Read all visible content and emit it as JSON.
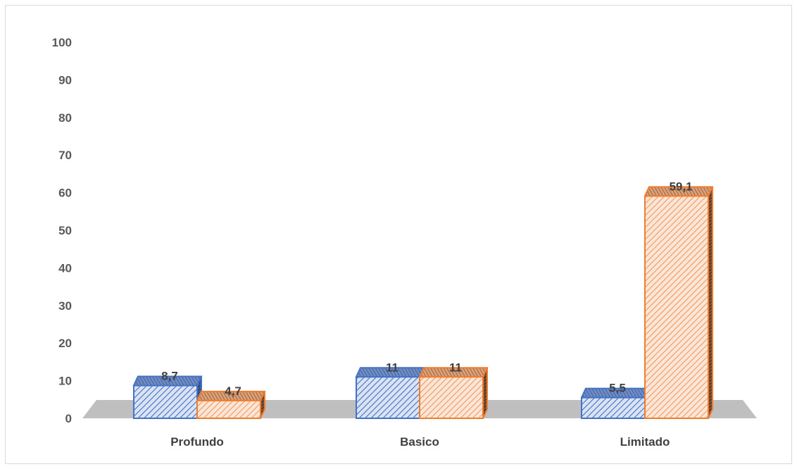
{
  "chart_data": {
    "type": "bar",
    "style": "3d-clustered-column",
    "categories": [
      "Profundo",
      "Basico",
      "Limitado"
    ],
    "series": [
      {
        "values": [
          8.7,
          11,
          5.5
        ],
        "color": "#4472c4",
        "fill": "#dae3f3",
        "pattern": "diagonal-hatch"
      },
      {
        "values": [
          4.7,
          11,
          59.1
        ],
        "color": "#ed7d31",
        "fill": "#fbe5d6",
        "pattern": "diagonal-hatch"
      }
    ],
    "data_labels": [
      [
        "8,7",
        "11",
        "5,5"
      ],
      [
        "4,7",
        "11",
        "59,1"
      ]
    ],
    "y_ticks": [
      "0",
      "10",
      "20",
      "30",
      "40",
      "50",
      "60",
      "70",
      "80",
      "90",
      "100"
    ],
    "ylim": [
      0,
      100
    ],
    "title": "",
    "xlabel": "",
    "ylabel": "",
    "grid": false,
    "legend": false,
    "floor_color": "#bfbfbf"
  }
}
